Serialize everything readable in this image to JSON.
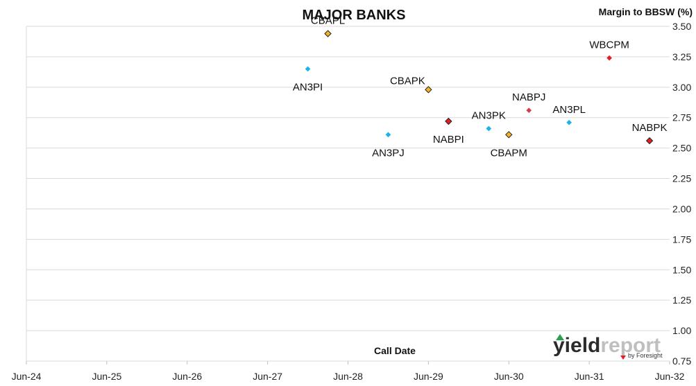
{
  "chart_data": {
    "type": "scatter",
    "title": "MAJOR BANKS",
    "xlabel": "Call Date",
    "ylabel": "Margin to BBSW (%)",
    "x_ticks": [
      "Jun-24",
      "Jun-25",
      "Jun-26",
      "Jun-27",
      "Jun-28",
      "Jun-29",
      "Jun-30",
      "Jun-31",
      "Jun-32"
    ],
    "xlim": [
      "2024-06",
      "2032-06"
    ],
    "ylim": [
      0.75,
      3.5
    ],
    "y_ticks": [
      "0.75",
      "1.00",
      "1.25",
      "1.50",
      "1.75",
      "2.00",
      "2.25",
      "2.50",
      "2.75",
      "3.00",
      "3.25",
      "3.50"
    ],
    "grid": "horizontal",
    "y_axis_position": "right",
    "points": [
      {
        "label": "CBAPL",
        "x": "2028-03",
        "y": 3.44,
        "color": "#F5B323",
        "marker": "diamond-outlined",
        "label_pos": "above"
      },
      {
        "label": "AN3PI",
        "x": "2027-12",
        "y": 3.15,
        "color": "#1BB4E8",
        "marker": "diamond",
        "label_pos": "below"
      },
      {
        "label": "CBAPK",
        "x": "2029-06",
        "y": 2.98,
        "color": "#F5B323",
        "marker": "diamond-outlined",
        "label_pos": "above-left"
      },
      {
        "label": "NABPI",
        "x": "2029-09",
        "y": 2.72,
        "color": "#E31E24",
        "marker": "diamond-outlined",
        "label_pos": "below"
      },
      {
        "label": "AN3PJ",
        "x": "2028-12",
        "y": 2.61,
        "color": "#1BB4E8",
        "marker": "diamond",
        "label_pos": "below"
      },
      {
        "label": "AN3PK",
        "x": "2030-03",
        "y": 2.66,
        "color": "#1BB4E8",
        "marker": "diamond",
        "label_pos": "above"
      },
      {
        "label": "CBAPM",
        "x": "2030-06",
        "y": 2.61,
        "color": "#F5B323",
        "marker": "diamond-outlined",
        "label_pos": "below"
      },
      {
        "label": "NABPJ",
        "x": "2030-09",
        "y": 2.81,
        "color": "#D93A4A",
        "marker": "diamond",
        "label_pos": "above"
      },
      {
        "label": "AN3PL",
        "x": "2031-03",
        "y": 2.71,
        "color": "#1BB4E8",
        "marker": "diamond",
        "label_pos": "above"
      },
      {
        "label": "WBCPM",
        "x": "2031-09",
        "y": 3.24,
        "color": "#E31E24",
        "marker": "diamond",
        "label_pos": "above"
      },
      {
        "label": "NABPK",
        "x": "2032-03",
        "y": 2.56,
        "color": "#E31E24",
        "marker": "diamond-outlined",
        "label_pos": "above"
      }
    ]
  },
  "logo": {
    "name": "yieldreport",
    "part1": "yield",
    "part2": "report",
    "byline": "by Foresight",
    "colors": {
      "yield": "#2B2B2B",
      "report": "#BFBFBF",
      "accent_green": "#2E9E4F",
      "accent_red": "#E31E24"
    }
  }
}
